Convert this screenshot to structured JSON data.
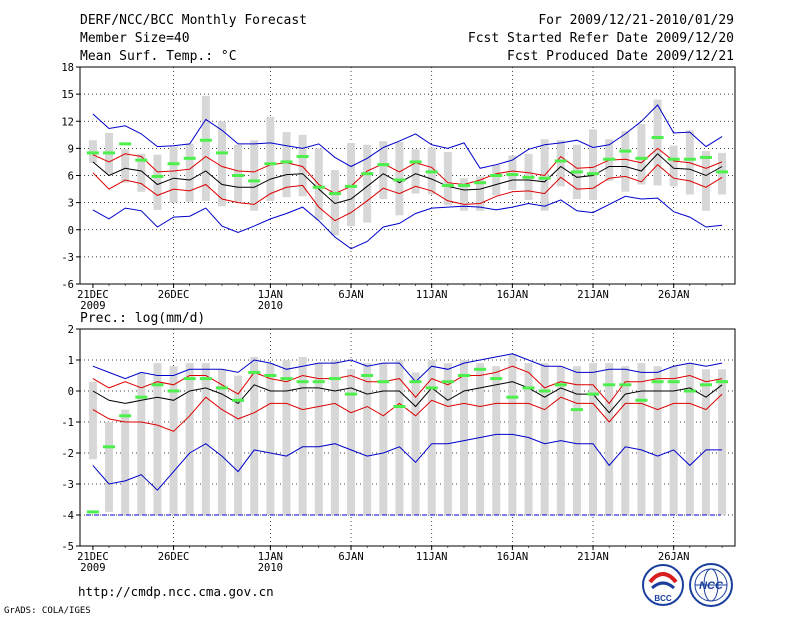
{
  "header": {
    "title": "DERF/NCC/BCC Monthly Forecast",
    "member_size": "Member Size=40",
    "forecast_period": "For 2009/12/21-2010/01/29",
    "started_refer_date": "Fcst Started Refer Date 2009/12/20",
    "produced_date": "Fcst Produced Date 2009/12/21"
  },
  "footer": {
    "url": "http://cmdp.ncc.cma.gov.cn",
    "credit": "GrADS: COLA/IGES",
    "logo_left": "BCC",
    "logo_right": "NCC"
  },
  "colors": {
    "max_line": "#0000cc",
    "pct_line": "#dd0000",
    "mean_line": "#000000",
    "obs_mark": "#4cef4c",
    "spread_bar": "#d7d7d7",
    "floor_line": "#0000cc"
  },
  "chart_data": [
    {
      "type": "line",
      "title": "Mean Surf. Temp.: °C",
      "ylim": [
        -6,
        18
      ],
      "yticks": [
        "18",
        "15",
        "12",
        "9",
        "6",
        "3",
        "0",
        "-3",
        "-6"
      ],
      "ytick_values": [
        18,
        15,
        12,
        9,
        6,
        3,
        0,
        -3,
        -6
      ],
      "xticks": [
        {
          "day": 1,
          "label": "21DEC",
          "sub": "2009"
        },
        {
          "day": 6,
          "label": "26DEC",
          "sub": ""
        },
        {
          "day": 12,
          "label": "1JAN",
          "sub": "2010"
        },
        {
          "day": 17,
          "label": "6JAN",
          "sub": ""
        },
        {
          "day": 22,
          "label": "11JAN",
          "sub": ""
        },
        {
          "day": 27,
          "label": "16JAN",
          "sub": ""
        },
        {
          "day": 32,
          "label": "21JAN",
          "sub": ""
        },
        {
          "day": 37,
          "label": "26JAN",
          "sub": ""
        }
      ],
      "days": [
        1,
        2,
        3,
        4,
        5,
        6,
        7,
        8,
        9,
        10,
        11,
        12,
        13,
        14,
        15,
        16,
        17,
        18,
        19,
        20,
        21,
        22,
        23,
        24,
        25,
        26,
        27,
        28,
        29,
        30,
        31,
        32,
        33,
        34,
        35,
        36,
        37,
        38,
        39,
        40
      ],
      "series": [
        {
          "name": "max",
          "values": [
            12.8,
            11.2,
            11.5,
            10.6,
            9.2,
            9.3,
            9.5,
            12.2,
            11.0,
            9.5,
            9.5,
            9.6,
            9.3,
            9.0,
            9.5,
            8.0,
            7.0,
            7.9,
            9.1,
            9.8,
            10.6,
            9.4,
            9.0,
            9.6,
            6.8,
            7.2,
            7.7,
            8.9,
            9.4,
            9.6,
            9.9,
            9.1,
            9.4,
            10.6,
            12.0,
            13.8,
            10.7,
            10.8,
            9.2,
            10.3
          ]
        },
        {
          "name": "p90",
          "values": [
            8.3,
            7.5,
            8.4,
            8.1,
            6.4,
            6.5,
            6.7,
            8.1,
            7.0,
            6.5,
            6.4,
            7.2,
            7.4,
            7.0,
            5.0,
            4.0,
            4.8,
            6.5,
            7.3,
            6.4,
            7.4,
            6.9,
            5.2,
            5.0,
            5.5,
            6.2,
            6.5,
            6.3,
            6.0,
            8.1,
            6.8,
            6.9,
            7.7,
            7.8,
            7.4,
            9.0,
            7.6,
            7.4,
            6.8,
            7.5
          ]
        },
        {
          "name": "mean",
          "values": [
            7.5,
            6.0,
            6.8,
            6.5,
            5.0,
            5.7,
            5.5,
            6.5,
            5.0,
            4.7,
            4.7,
            5.6,
            6.1,
            6.2,
            4.5,
            2.9,
            3.4,
            4.8,
            6.2,
            5.2,
            6.2,
            5.6,
            4.8,
            4.4,
            4.5,
            5.0,
            5.5,
            5.5,
            5.3,
            7.0,
            5.8,
            6.0,
            7.0,
            7.0,
            6.5,
            8.4,
            6.8,
            6.7,
            6.0,
            7.0
          ]
        },
        {
          "name": "p10",
          "values": [
            6.3,
            4.5,
            5.5,
            5.1,
            3.8,
            4.5,
            4.3,
            5.0,
            3.4,
            3.0,
            2.8,
            4.0,
            4.7,
            4.9,
            2.5,
            1.0,
            1.9,
            3.2,
            4.6,
            4.0,
            4.8,
            4.3,
            3.2,
            2.8,
            2.9,
            3.7,
            4.2,
            4.3,
            4.0,
            5.8,
            4.5,
            4.6,
            5.7,
            5.9,
            5.3,
            7.2,
            5.7,
            5.4,
            4.7,
            5.8
          ]
        },
        {
          "name": "min",
          "values": [
            2.2,
            1.2,
            2.4,
            2.1,
            0.3,
            1.4,
            1.5,
            2.4,
            0.4,
            -0.3,
            0.4,
            1.2,
            1.8,
            2.5,
            1.0,
            -0.8,
            -2.1,
            -1.3,
            0.3,
            0.7,
            1.8,
            2.4,
            2.5,
            2.6,
            2.5,
            2.2,
            2.5,
            2.9,
            2.6,
            3.3,
            2.1,
            1.9,
            2.8,
            3.7,
            3.4,
            3.5,
            2.0,
            1.4,
            0.3,
            0.5
          ]
        }
      ],
      "spread_bars": {
        "low": [
          7.4,
          6.2,
          5.2,
          4.2,
          2.2,
          3.0,
          3.1,
          3.2,
          2.6,
          3.1,
          2.1,
          3.2,
          3.6,
          3.7,
          1.1,
          -0.6,
          0.4,
          0.8,
          3.4,
          1.6,
          4.0,
          3.9,
          2.7,
          2.1,
          2.1,
          3.8,
          4.4,
          3.3,
          2.1,
          4.8,
          3.4,
          3.3,
          5.4,
          4.2,
          5.0,
          4.9,
          4.8,
          3.9,
          2.1,
          3.9
        ],
        "high": [
          9.9,
          10.7,
          8.9,
          8.4,
          8.3,
          9.2,
          9.5,
          14.8,
          12.0,
          9.4,
          9.9,
          12.5,
          10.8,
          10.5,
          9.0,
          6.6,
          9.6,
          9.4,
          9.8,
          9.7,
          8.9,
          9.1,
          8.6,
          5.7,
          5.9,
          7.2,
          8.2,
          8.4,
          10.0,
          9.9,
          9.4,
          11.1,
          10.0,
          10.9,
          11.7,
          14.4,
          9.3,
          11.0,
          8.7,
          8.5
        ]
      },
      "observed": [
        8.5,
        8.5,
        9.5,
        7.7,
        5.9,
        7.3,
        7.9,
        9.9,
        8.5,
        6.0,
        5.4,
        7.3,
        7.5,
        8.1,
        4.7,
        4.0,
        4.8,
        6.2,
        7.2,
        5.5,
        7.5,
        6.4,
        4.9,
        4.9,
        5.2,
        6.0,
        6.1,
        5.8,
        5.7,
        7.6,
        6.4,
        6.2,
        7.8,
        8.7,
        7.9,
        10.2,
        7.8,
        7.8,
        8.0,
        6.4
      ]
    },
    {
      "type": "line",
      "title": "Prec.: log(mm/d)",
      "ylim": [
        -5,
        2
      ],
      "yticks": [
        "2",
        "1",
        "0",
        "-1",
        "-2",
        "-3",
        "-4",
        "-5"
      ],
      "ytick_values": [
        2,
        1,
        0,
        -1,
        -2,
        -3,
        -4,
        -5
      ],
      "floor_value": -4,
      "xticks": [
        {
          "day": 1,
          "label": "21DEC",
          "sub": "2009"
        },
        {
          "day": 6,
          "label": "26DEC",
          "sub": ""
        },
        {
          "day": 12,
          "label": "1JAN",
          "sub": "2010"
        },
        {
          "day": 17,
          "label": "6JAN",
          "sub": ""
        },
        {
          "day": 22,
          "label": "11JAN",
          "sub": ""
        },
        {
          "day": 27,
          "label": "16JAN",
          "sub": ""
        },
        {
          "day": 32,
          "label": "21JAN",
          "sub": ""
        },
        {
          "day": 37,
          "label": "26JAN",
          "sub": ""
        }
      ],
      "days": [
        1,
        2,
        3,
        4,
        5,
        6,
        7,
        8,
        9,
        10,
        11,
        12,
        13,
        14,
        15,
        16,
        17,
        18,
        19,
        20,
        21,
        22,
        23,
        24,
        25,
        26,
        27,
        28,
        29,
        30,
        31,
        32,
        33,
        34,
        35,
        36,
        37,
        38,
        39,
        40
      ],
      "series": [
        {
          "name": "max",
          "values": [
            0.8,
            0.6,
            0.4,
            0.6,
            0.5,
            0.5,
            0.7,
            0.7,
            0.7,
            0.6,
            1.0,
            0.9,
            0.7,
            0.8,
            0.9,
            0.9,
            1.0,
            0.8,
            0.9,
            0.9,
            0.3,
            0.8,
            0.7,
            0.9,
            1.0,
            1.1,
            1.2,
            1.0,
            0.8,
            0.8,
            0.6,
            0.6,
            0.7,
            0.7,
            0.6,
            0.6,
            0.8,
            0.9,
            0.8,
            0.9
          ]
        },
        {
          "name": "p90",
          "values": [
            0.4,
            0.1,
            0.3,
            0.1,
            0.3,
            0.2,
            0.5,
            0.5,
            0.2,
            -0.1,
            0.6,
            0.4,
            0.3,
            0.5,
            0.4,
            0.4,
            0.5,
            0.3,
            0.3,
            0.4,
            -0.2,
            0.4,
            0.2,
            0.5,
            0.5,
            0.6,
            0.8,
            0.6,
            0.1,
            0.3,
            0.2,
            0.2,
            -0.4,
            0.3,
            0.3,
            0.4,
            0.4,
            0.5,
            0.3,
            0.4
          ]
        },
        {
          "name": "mean",
          "values": [
            0.0,
            -0.3,
            -0.4,
            -0.3,
            -0.2,
            -0.3,
            0.0,
            0.1,
            -0.1,
            -0.4,
            0.2,
            0.0,
            0.0,
            0.1,
            0.1,
            0.0,
            0.1,
            -0.1,
            0.0,
            0.0,
            -0.5,
            0.1,
            -0.3,
            0.0,
            0.1,
            0.2,
            0.3,
            0.1,
            -0.2,
            0.1,
            -0.1,
            -0.1,
            -0.7,
            -0.1,
            0.0,
            0.0,
            0.0,
            0.1,
            -0.2,
            0.2
          ]
        },
        {
          "name": "p10",
          "values": [
            -0.6,
            -0.9,
            -1.0,
            -1.0,
            -1.1,
            -1.3,
            -0.8,
            -0.2,
            -0.6,
            -0.9,
            -0.7,
            -0.4,
            -0.4,
            -0.6,
            -0.5,
            -0.4,
            -0.7,
            -0.5,
            -0.8,
            -0.4,
            -0.8,
            -0.3,
            -0.5,
            -0.4,
            -0.5,
            -0.4,
            -0.4,
            -0.4,
            -0.6,
            -0.2,
            -0.4,
            -0.4,
            -1.0,
            -0.4,
            -0.4,
            -0.6,
            -0.4,
            -0.4,
            -0.6,
            -0.1
          ]
        },
        {
          "name": "min",
          "values": [
            -2.4,
            -3.0,
            -2.9,
            -2.7,
            -3.2,
            -2.6,
            -2.0,
            -1.7,
            -2.1,
            -2.6,
            -1.9,
            -2.0,
            -2.1,
            -1.8,
            -1.8,
            -1.7,
            -1.9,
            -2.1,
            -2.0,
            -1.8,
            -2.3,
            -1.7,
            -1.7,
            -1.6,
            -1.5,
            -1.4,
            -1.4,
            -1.5,
            -1.7,
            -1.6,
            -1.7,
            -1.7,
            -2.4,
            -1.8,
            -1.9,
            -2.1,
            -1.9,
            -2.4,
            -1.9,
            -1.9
          ]
        }
      ],
      "spread_bars": {
        "low": [
          -2.2,
          -3.9,
          -4.0,
          -4.0,
          -4.0,
          -4.0,
          -4.0,
          -4.0,
          -4.0,
          -4.0,
          -4.0,
          -4.0,
          -4.0,
          -4.0,
          -4.0,
          -4.0,
          -4.0,
          -4.0,
          -4.0,
          -4.0,
          -4.0,
          -4.0,
          -4.0,
          -4.0,
          -4.0,
          -4.0,
          -4.0,
          -4.0,
          -4.0,
          -4.0,
          -4.0,
          -4.0,
          -4.0,
          -4.0,
          -4.0,
          -4.0,
          -4.0,
          -4.0,
          -4.0,
          -4.0
        ],
        "high": [
          0.3,
          -1.0,
          -0.6,
          0.6,
          0.9,
          0.8,
          0.9,
          0.9,
          0.7,
          0.5,
          1.1,
          0.9,
          1.0,
          1.1,
          0.9,
          1.0,
          0.7,
          0.9,
          0.9,
          1.0,
          0.6,
          1.0,
          0.9,
          1.0,
          0.9,
          0.8,
          1.2,
          0.9,
          0.9,
          0.8,
          0.8,
          0.9,
          0.9,
          0.8,
          0.9,
          0.8,
          0.8,
          0.9,
          0.7,
          0.7
        ]
      },
      "observed": [
        -3.9,
        -1.8,
        -0.8,
        -0.2,
        0.2,
        0.0,
        0.4,
        0.4,
        0.1,
        -0.3,
        0.6,
        0.5,
        0.4,
        0.3,
        0.3,
        0.4,
        -0.1,
        0.5,
        0.3,
        -0.5,
        0.3,
        0.1,
        0.3,
        0.5,
        0.7,
        0.4,
        -0.2,
        0.1,
        0.0,
        0.2,
        -0.6,
        -0.1,
        0.2,
        0.2,
        -0.3,
        0.3,
        0.3,
        0.0,
        0.2,
        0.3
      ]
    }
  ]
}
